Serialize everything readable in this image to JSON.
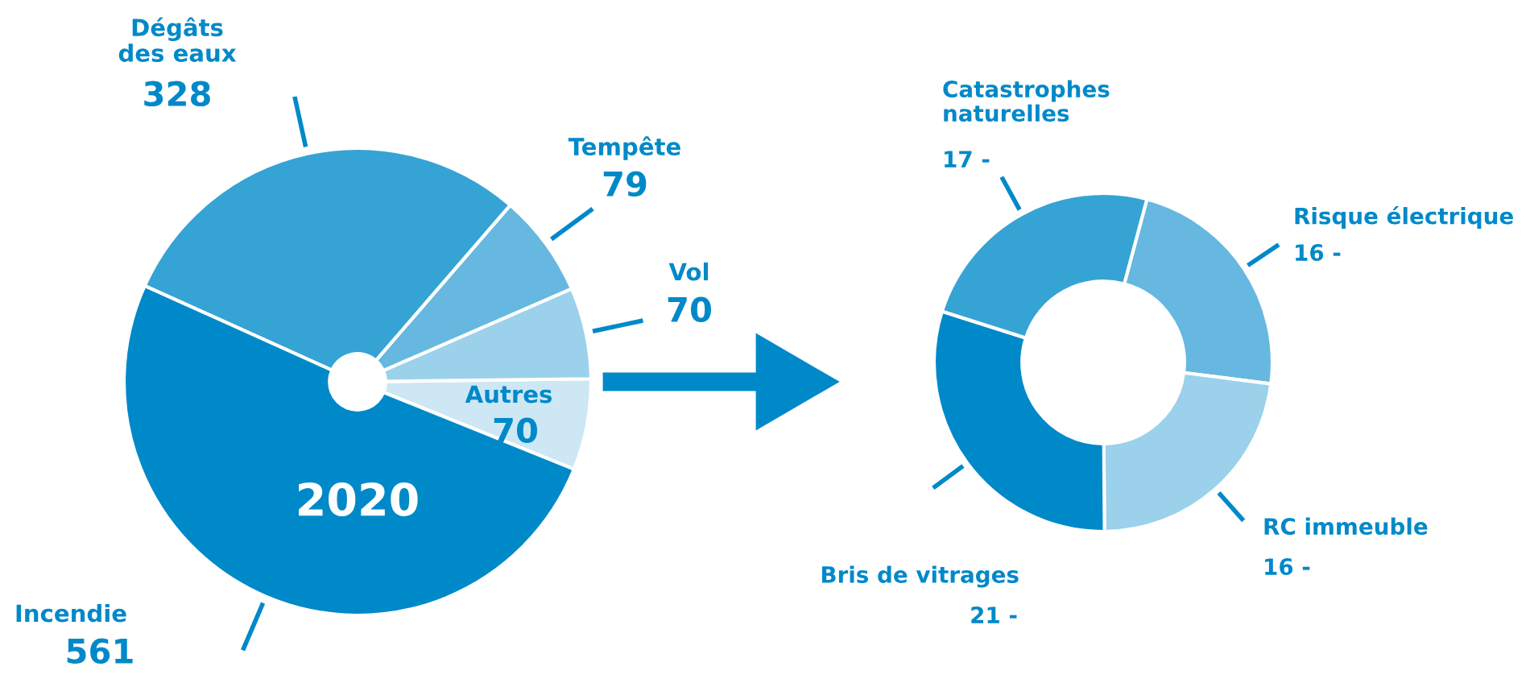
{
  "chart_data": [
    {
      "type": "pie",
      "categories": [
        "Autres",
        "Vol",
        "Tempête",
        "Dégâts des eaux",
        "Incendie"
      ],
      "values": [
        70,
        70,
        79,
        328,
        561
      ],
      "colors": [
        "#cde7f4",
        "#9bd1eb",
        "#66b8e0",
        "#36a3d5",
        "#0089c9"
      ],
      "data_labels": true,
      "annotations": [
        "2020"
      ]
    },
    {
      "type": "donut",
      "categories": [
        "Risque électrique",
        "RC immeuble",
        "Bris de vitrages",
        "Catastrophes naturelles"
      ],
      "values": [
        16,
        16,
        21,
        17
      ],
      "colors": [
        "#66b8e0",
        "#9bd1eb",
        "#0089c9",
        "#36a3d5"
      ],
      "value_labels": [
        "16 -",
        "16 -",
        "21 -",
        "17 -"
      ]
    }
  ]
}
